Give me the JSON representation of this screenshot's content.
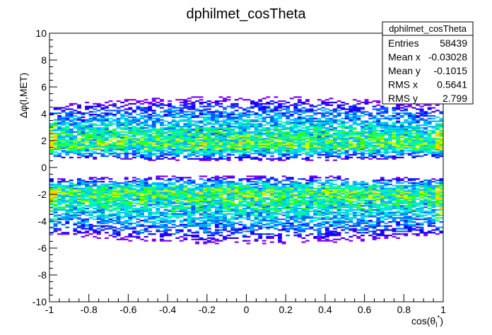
{
  "chart_data": {
    "type": "heatmap",
    "title": "dphilmet_cosTheta",
    "xlabel": "cos(θ_l*)",
    "ylabel": "Δφ(l,MET)",
    "xlim": [
      -1,
      1
    ],
    "ylim": [
      -10,
      10
    ],
    "x_ticks": [
      "-1",
      "-0.8",
      "-0.6",
      "-0.4",
      "-0.2",
      "0",
      "0.2",
      "0.4",
      "0.6",
      "0.8",
      "1"
    ],
    "y_ticks": [
      "10",
      "8",
      "6",
      "4",
      "2",
      "0",
      "-2",
      "-4",
      "-6",
      "-8",
      "-10"
    ],
    "grid": false,
    "color_scale": [
      "#7b00ff",
      "#1d00ff",
      "#0061ff",
      "#00b4ff",
      "#00e2e0",
      "#00ff9a",
      "#3aff00",
      "#c8ff00",
      "#ffd000"
    ],
    "bands": [
      {
        "y_low": 0.5,
        "y_high": 5.3,
        "y_peak": 1.6
      },
      {
        "y_low": -5.7,
        "y_high": -0.6,
        "y_peak": -1.8
      }
    ],
    "stats": {
      "name": "dphilmet_cosTheta",
      "rows": [
        {
          "label": "Entries",
          "value": "58439"
        },
        {
          "label": "Mean x",
          "value": "-0.03028"
        },
        {
          "label": "Mean y",
          "value": "-0.1015"
        },
        {
          "label": "RMS x",
          "value": "0.5641"
        },
        {
          "label": "RMS y",
          "value": "2.799"
        }
      ]
    }
  }
}
